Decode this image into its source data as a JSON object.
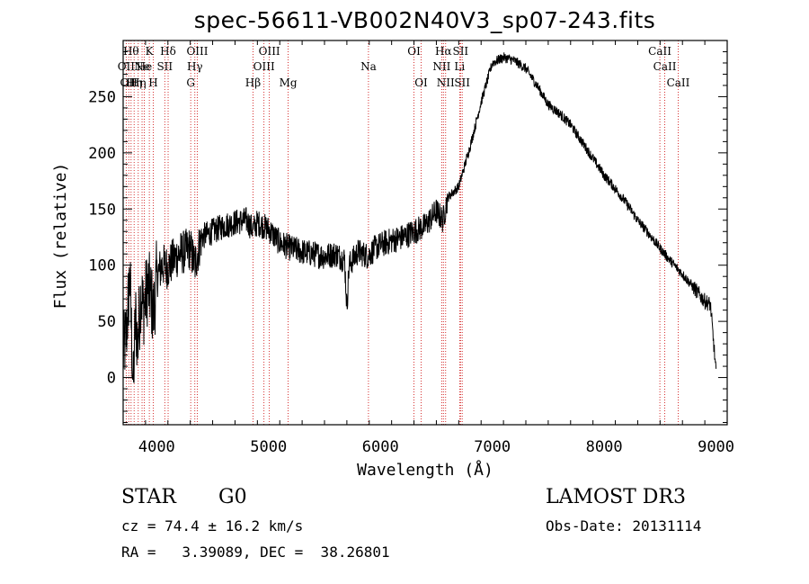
{
  "chart_data": {
    "type": "line",
    "title": "spec-56611-VB002N40V3_sp07-243.fits",
    "xlabel": "Wavelength (Å)",
    "ylabel": "Flux (relative)",
    "xlim": [
      3700,
      9100
    ],
    "ylim": [
      -42,
      300
    ],
    "xticks": [
      4000,
      5000,
      6000,
      7000,
      8000,
      9000
    ],
    "yticks": [
      0,
      50,
      100,
      150,
      200,
      250
    ],
    "spectrum_anchors": [
      [
        3700,
        20
      ],
      [
        3730,
        40
      ],
      [
        3760,
        90
      ],
      [
        3790,
        -10
      ],
      [
        3810,
        55
      ],
      [
        3830,
        30
      ],
      [
        3860,
        78
      ],
      [
        3880,
        60
      ],
      [
        3920,
        82
      ],
      [
        3950,
        72
      ],
      [
        3970,
        55
      ],
      [
        4000,
        90
      ],
      [
        4050,
        100
      ],
      [
        4100,
        98
      ],
      [
        4150,
        105
      ],
      [
        4200,
        110
      ],
      [
        4250,
        112
      ],
      [
        4300,
        115
      ],
      [
        4340,
        100
      ],
      [
        4400,
        125
      ],
      [
        4500,
        130
      ],
      [
        4600,
        135
      ],
      [
        4700,
        138
      ],
      [
        4800,
        140
      ],
      [
        4860,
        132
      ],
      [
        4900,
        138
      ],
      [
        5000,
        132
      ],
      [
        5100,
        120
      ],
      [
        5200,
        115
      ],
      [
        5300,
        112
      ],
      [
        5400,
        110
      ],
      [
        5500,
        108
      ],
      [
        5600,
        110
      ],
      [
        5680,
        105
      ],
      [
        5700,
        62
      ],
      [
        5720,
        100
      ],
      [
        5800,
        112
      ],
      [
        5890,
        108
      ],
      [
        5950,
        115
      ],
      [
        6000,
        118
      ],
      [
        6100,
        122
      ],
      [
        6200,
        125
      ],
      [
        6300,
        130
      ],
      [
        6400,
        135
      ],
      [
        6500,
        148
      ],
      [
        6560,
        140
      ],
      [
        6600,
        160
      ],
      [
        6700,
        170
      ],
      [
        6800,
        205
      ],
      [
        6900,
        245
      ],
      [
        7000,
        280
      ],
      [
        7100,
        285
      ],
      [
        7200,
        282
      ],
      [
        7300,
        275
      ],
      [
        7400,
        260
      ],
      [
        7500,
        243
      ],
      [
        7600,
        235
      ],
      [
        7700,
        225
      ],
      [
        7800,
        210
      ],
      [
        7900,
        195
      ],
      [
        8000,
        180
      ],
      [
        8100,
        168
      ],
      [
        8200,
        155
      ],
      [
        8300,
        140
      ],
      [
        8400,
        128
      ],
      [
        8500,
        115
      ],
      [
        8600,
        103
      ],
      [
        8700,
        92
      ],
      [
        8800,
        80
      ],
      [
        8900,
        68
      ],
      [
        8950,
        65
      ],
      [
        9000,
        5
      ]
    ],
    "line_markers": [
      {
        "wl": 3727,
        "label": "OII",
        "row": 1
      },
      {
        "wl": 3750,
        "label": "OII",
        "row": 2
      },
      {
        "wl": 3771,
        "label": "Hθ",
        "row": 0
      },
      {
        "wl": 3798,
        "label": "Hη",
        "row": 2
      },
      {
        "wl": 3835,
        "label": "Hη",
        "row": 2
      },
      {
        "wl": 3869,
        "label": "Ne",
        "row": 1
      },
      {
        "wl": 3889,
        "label": "He",
        "row": 1
      },
      {
        "wl": 3934,
        "label": "K",
        "row": 0
      },
      {
        "wl": 3969,
        "label": "H",
        "row": 2
      },
      {
        "wl": 4072,
        "label": "SII",
        "row": 1
      },
      {
        "wl": 4102,
        "label": "Hδ",
        "row": 0
      },
      {
        "wl": 4304,
        "label": "G",
        "row": 2
      },
      {
        "wl": 4341,
        "label": "Hγ",
        "row": 1
      },
      {
        "wl": 4363,
        "label": "OIII",
        "row": 0
      },
      {
        "wl": 4861,
        "label": "Hβ",
        "row": 2
      },
      {
        "wl": 4959,
        "label": "OIII",
        "row": 1
      },
      {
        "wl": 5007,
        "label": "OIII",
        "row": 0
      },
      {
        "wl": 5175,
        "label": "Mg",
        "row": 2
      },
      {
        "wl": 5893,
        "label": "Na",
        "row": 1
      },
      {
        "wl": 6300,
        "label": "OI",
        "row": 0
      },
      {
        "wl": 6364,
        "label": "OI",
        "row": 2
      },
      {
        "wl": 6548,
        "label": "NII",
        "row": 1
      },
      {
        "wl": 6563,
        "label": "Hα",
        "row": 0
      },
      {
        "wl": 6583,
        "label": "NII",
        "row": 2
      },
      {
        "wl": 6708,
        "label": "Li",
        "row": 1
      },
      {
        "wl": 6716,
        "label": "SII",
        "row": 0
      },
      {
        "wl": 6731,
        "label": "SII",
        "row": 2
      },
      {
        "wl": 8498,
        "label": "CaII",
        "row": 0
      },
      {
        "wl": 8542,
        "label": "CaII",
        "row": 1
      },
      {
        "wl": 8662,
        "label": "CaII",
        "row": 2
      }
    ]
  },
  "info": {
    "class": "STAR",
    "subclass": "G0",
    "survey": "LAMOST DR3",
    "cz": "cz = 74.4 ± 16.2 km/s",
    "obs_date": "Obs-Date: 20131114",
    "radec": "RA =   3.39089, DEC =  38.26801"
  },
  "colors": {
    "axis": "#000000",
    "spectrum": "#000000",
    "marker": "#cc0000"
  }
}
